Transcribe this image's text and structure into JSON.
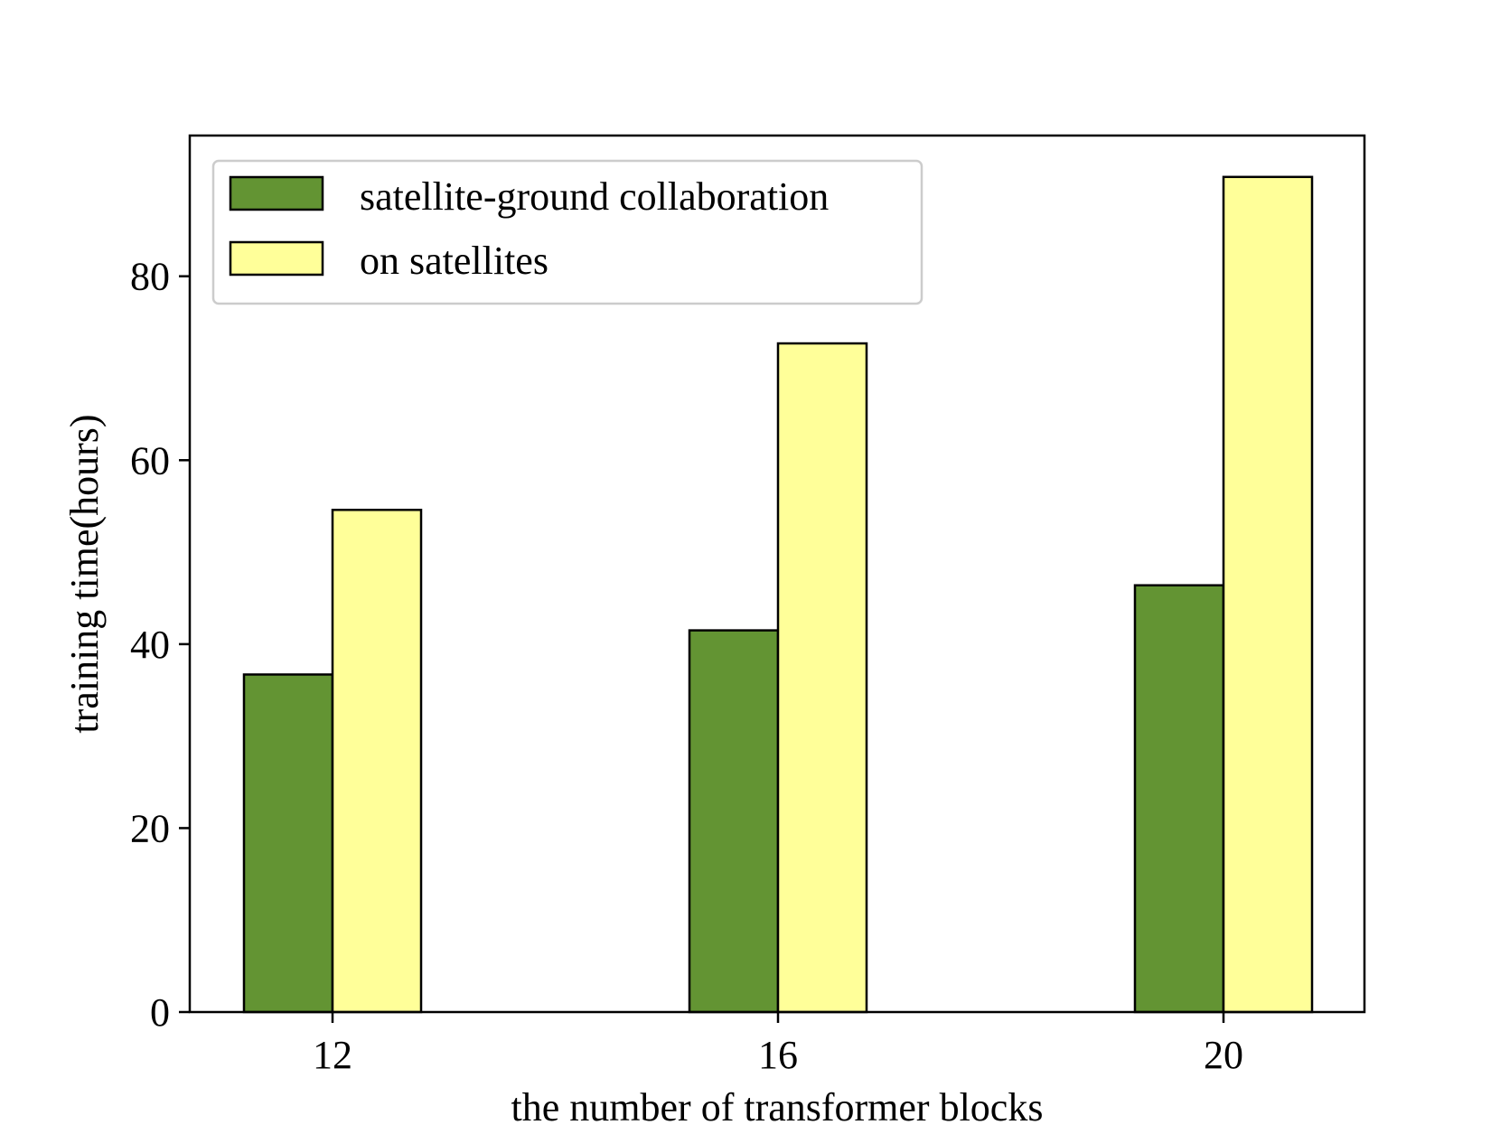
{
  "chart_data": {
    "type": "bar",
    "categories": [
      "12",
      "16",
      "20"
    ],
    "series": [
      {
        "name": "satellite-ground collaboration",
        "values": [
          36.7,
          41.5,
          46.4
        ],
        "color": "#639433"
      },
      {
        "name": "on satellites",
        "values": [
          54.6,
          72.7,
          90.8
        ],
        "color": "#ffff99"
      }
    ],
    "xlabel": "the number of transformer blocks",
    "ylabel": "training time(hours)",
    "ylim": [
      0,
      95.3
    ],
    "yticks": [
      0,
      20,
      40,
      60,
      80
    ],
    "legend_position": "upper-left",
    "grid": false,
    "edge_color": "#000000"
  }
}
